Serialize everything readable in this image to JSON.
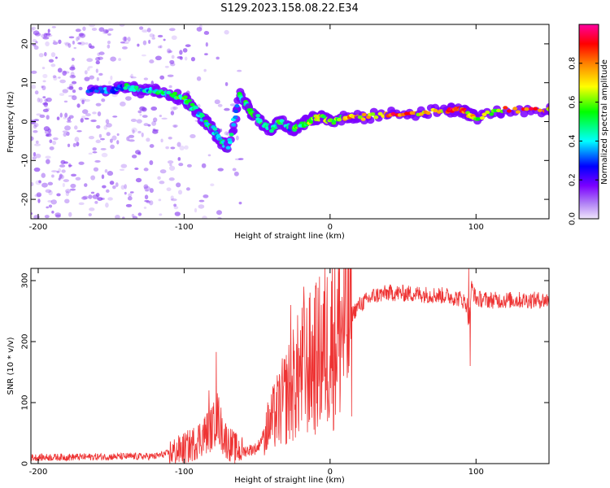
{
  "title": "S129.2023.158.08.22.E34",
  "chart_data": [
    {
      "type": "heatmap",
      "xlabel": "Height of straight line (km)",
      "ylabel": "Frequency (Hz)",
      "xlim": [
        -205,
        150
      ],
      "ylim": [
        -25,
        25
      ],
      "xticks": [
        -200,
        -100,
        0,
        100
      ],
      "yticks": [
        -20,
        -10,
        0,
        10,
        20
      ],
      "colorbar": {
        "label": "Normalized spectral amplitude",
        "range": [
          0,
          1
        ],
        "ticks": [
          "0.0",
          "0.2",
          "0.4",
          "0.6",
          "0.8"
        ],
        "colors": [
          "#f0e6fb",
          "#7b00ff",
          "#0000ff",
          "#00ffff",
          "#00ff00",
          "#ffff00",
          "#ff8000",
          "#ff0000",
          "#ff00a0"
        ]
      },
      "trace": {
        "name_hidden": true,
        "x": [
          -165,
          -150,
          -140,
          -130,
          -120,
          -110,
          -100,
          -95,
          -90,
          -85,
          -80,
          -75,
          -70,
          -62,
          -58,
          -55,
          -50,
          -45,
          -40,
          -35,
          -30,
          -25,
          -20,
          -15,
          -10,
          -5,
          0,
          10,
          20,
          40,
          60,
          80,
          90,
          95,
          100,
          120,
          150
        ],
        "y": [
          8,
          8,
          9,
          8,
          8,
          7,
          6,
          4,
          2,
          0,
          -2,
          -5,
          -7,
          7,
          5,
          3,
          1,
          -1,
          -2,
          0,
          -1,
          -2,
          -1,
          0,
          1,
          1,
          0,
          1,
          1,
          2,
          2,
          3,
          3,
          2,
          1,
          3,
          3
        ],
        "amplitude": [
          0.3,
          0.35,
          0.45,
          0.4,
          0.45,
          0.5,
          0.5,
          0.45,
          0.4,
          0.45,
          0.4,
          0.45,
          0.4,
          0.45,
          0.5,
          0.55,
          0.5,
          0.45,
          0.4,
          0.5,
          0.4,
          0.55,
          0.5,
          0.6,
          0.65,
          0.6,
          0.6,
          0.75,
          0.7,
          0.85,
          0.7,
          0.9,
          0.85,
          0.7,
          0.6,
          0.85,
          0.7
        ]
      },
      "noise_region_x": [
        -205,
        -60
      ],
      "noise_color": "#8a3ff0"
    },
    {
      "type": "line",
      "xlabel": "Height of straight line (km)",
      "ylabel": "SNR (10 * v/v)",
      "xlim": [
        -205,
        150
      ],
      "ylim": [
        0,
        320
      ],
      "xticks": [
        -200,
        -100,
        0,
        100
      ],
      "yticks": [
        0,
        100,
        200,
        300
      ],
      "color": "#ee3333",
      "envelope": {
        "x": [
          -205,
          -120,
          -105,
          -95,
          -90,
          -85,
          -80,
          -78,
          -76,
          -74,
          -70,
          -65,
          -60,
          -50,
          -45,
          -40,
          -35,
          -30,
          -25,
          -20,
          -15,
          -10,
          -5,
          0,
          10,
          20,
          30,
          40,
          60,
          80,
          90,
          94,
          95,
          96,
          97,
          100,
          110,
          150
        ],
        "y": [
          10,
          12,
          20,
          30,
          40,
          50,
          60,
          80,
          70,
          50,
          35,
          25,
          20,
          25,
          50,
          70,
          90,
          110,
          130,
          150,
          160,
          170,
          185,
          200,
          230,
          260,
          275,
          280,
          278,
          275,
          270,
          260,
          230,
          260,
          290,
          270,
          268,
          268
        ]
      },
      "spikes": [
        {
          "x": -78,
          "y": 183
        },
        {
          "x": -83,
          "y": 120
        },
        {
          "x": -18,
          "y": 290
        },
        {
          "x": -10,
          "y": 292
        },
        {
          "x": -27,
          "y": 260
        },
        {
          "x": 95,
          "y": 320
        },
        {
          "x": 96,
          "y": 160
        }
      ]
    }
  ]
}
